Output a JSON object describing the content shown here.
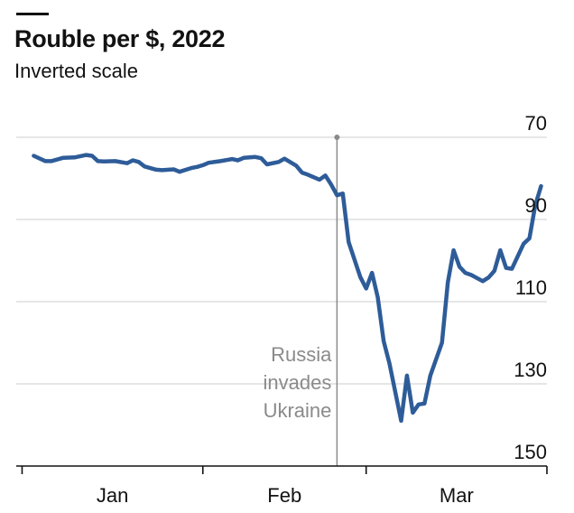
{
  "chart_data": {
    "type": "line",
    "title": "Rouble per $, 2022",
    "subtitle": "Inverted scale",
    "xlabel": "",
    "ylabel": "",
    "y_inverted": true,
    "ylim": [
      70,
      150
    ],
    "y_ticks": [
      70,
      90,
      110,
      130,
      150
    ],
    "x_tick_labels": [
      "Jan",
      "Feb",
      "Mar"
    ],
    "grid": true,
    "annotation": {
      "date": "2022-02-24",
      "lines": [
        "Russia",
        "invades",
        "Ukraine"
      ]
    },
    "colors": {
      "line": "#2e5c99",
      "grid": "#d6d6d6",
      "axis": "#121212",
      "annotation": "#8a8a8a"
    },
    "series": [
      {
        "x": [
          "2022-01-03",
          "2022-01-05",
          "2022-01-06",
          "2022-01-08",
          "2022-01-10",
          "2022-01-11",
          "2022-01-12",
          "2022-01-13",
          "2022-01-14",
          "2022-01-15",
          "2022-01-17",
          "2022-01-19",
          "2022-01-20",
          "2022-01-21",
          "2022-01-22",
          "2022-01-24",
          "2022-01-25",
          "2022-01-27",
          "2022-01-28",
          "2022-01-30",
          "2022-01-31",
          "2022-02-01",
          "2022-02-02",
          "2022-02-04",
          "2022-02-06",
          "2022-02-07",
          "2022-02-08",
          "2022-02-10",
          "2022-02-11",
          "2022-02-12",
          "2022-02-14",
          "2022-02-15",
          "2022-02-17",
          "2022-02-18",
          "2022-02-19",
          "2022-02-21",
          "2022-02-22",
          "2022-02-23",
          "2022-02-24",
          "2022-02-25",
          "2022-02-26",
          "2022-02-28",
          "2022-03-01",
          "2022-03-02",
          "2022-03-03",
          "2022-03-04",
          "2022-03-05",
          "2022-03-07",
          "2022-03-08",
          "2022-03-09",
          "2022-03-10",
          "2022-03-11",
          "2022-03-12",
          "2022-03-14",
          "2022-03-15",
          "2022-03-16",
          "2022-03-17",
          "2022-03-18",
          "2022-03-19",
          "2022-03-21",
          "2022-03-22",
          "2022-03-23",
          "2022-03-24",
          "2022-03-25",
          "2022-03-26",
          "2022-03-28",
          "2022-03-29",
          "2022-03-30",
          "2022-03-31"
        ],
        "y": [
          74.5,
          75.8,
          75.8,
          75.0,
          74.9,
          74.6,
          74.3,
          74.5,
          75.8,
          75.9,
          75.8,
          76.3,
          75.6,
          76.0,
          77.1,
          77.9,
          78.0,
          77.8,
          78.4,
          77.5,
          77.2,
          76.8,
          76.2,
          75.8,
          75.3,
          75.6,
          75.0,
          74.8,
          75.1,
          76.6,
          76.0,
          75.2,
          76.9,
          78.6,
          79.1,
          80.3,
          79.3,
          81.5,
          84.1,
          83.7,
          95.5,
          104.0,
          106.8,
          103.0,
          109.0,
          119.6,
          125.0,
          139.0,
          128.0,
          137.0,
          135.0,
          134.8,
          128.0,
          120.0,
          105.3,
          97.5,
          101.5,
          103.0,
          103.5,
          105.0,
          104.1,
          102.5,
          97.5,
          101.8,
          102.0,
          95.9,
          94.6,
          86.5,
          81.9
        ]
      }
    ]
  }
}
